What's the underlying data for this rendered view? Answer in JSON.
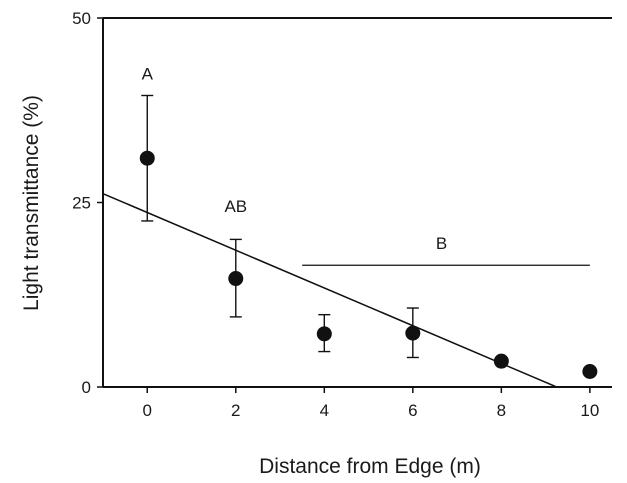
{
  "chart_data": {
    "type": "scatter",
    "xlabel": "Distance from Edge (m)",
    "ylabel": "Light transmittance (%)",
    "xlim": [
      -1,
      10.5
    ],
    "ylim": [
      0,
      50
    ],
    "x_ticks": [
      0,
      2,
      4,
      6,
      8,
      10
    ],
    "y_ticks": [
      0,
      25,
      50
    ],
    "x_tick_labels": [
      "0",
      "2",
      "4",
      "6",
      "8",
      "10"
    ],
    "y_tick_labels": [
      "0",
      "25",
      "50"
    ],
    "grid": false,
    "points": [
      {
        "x": 0,
        "y": 31,
        "err_low": 22.5,
        "err_high": 39.5
      },
      {
        "x": 2,
        "y": 14.7,
        "err_low": 9.5,
        "err_high": 20
      },
      {
        "x": 4,
        "y": 7.2,
        "err_low": 4.8,
        "err_high": 9.8
      },
      {
        "x": 6,
        "y": 7.3,
        "err_low": 4,
        "err_high": 10.7
      },
      {
        "x": 8,
        "y": 3.5,
        "err_low": null,
        "err_high": null
      },
      {
        "x": 10,
        "y": 2.1,
        "err_low": null,
        "err_high": null
      }
    ],
    "fit_line": {
      "x": [
        -1,
        9.25
      ],
      "y": [
        26.2,
        0
      ]
    },
    "annotations": [
      {
        "text": "A",
        "x": 0,
        "y": 42.5
      },
      {
        "text": "AB",
        "x": 2,
        "y": 24.5
      },
      {
        "text": "B",
        "x": 6.65,
        "y": 19.5
      }
    ],
    "group_bar": {
      "x": [
        3.5,
        10
      ],
      "y": 16.5
    }
  }
}
